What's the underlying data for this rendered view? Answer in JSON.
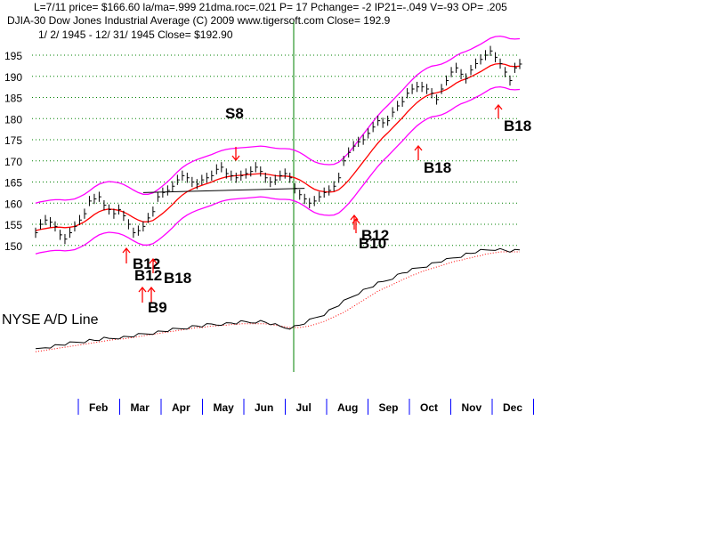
{
  "header": {
    "line1": "L=7/11  price= $166.60  la/ma=.999 21dma.roc=.021 P=  17 Pchange= -2 IP21=-.049 V=-93 OP= .205",
    "line2": "DJIA-30  Dow Jones Industrial Average          (C) 2009 www.tigersoft.com     Close=  192.9",
    "line3": "1/ 2/ 1945 -  12/ 31/ 1945   Close= $192.90"
  },
  "ad_label": "NYSE A/D Line",
  "colors": {
    "grid": "#008000",
    "band": "#ff00ff",
    "ma": "#ff0000",
    "price": "#000000",
    "divider": "#008000",
    "signal_arrow": "#ff0000",
    "ad_ma": "#ff0000",
    "month_tick": "#0000ff"
  },
  "chart_data": {
    "type": "line",
    "title": "DJIA-30 Dow Jones Industrial Average",
    "xlabel": "",
    "ylabel": "",
    "ylim": [
      148,
      196
    ],
    "y_ticks": [
      150,
      155,
      160,
      165,
      170,
      175,
      180,
      185,
      190,
      195
    ],
    "grid": "horizontal dotted",
    "months": [
      "Feb",
      "Mar",
      "Apr",
      "May",
      "Jun",
      "Jul",
      "Aug",
      "Sep",
      "Oct",
      "Nov",
      "Dec"
    ],
    "series": [
      {
        "values": [
          153.0,
          155.0,
          156.0,
          155.5,
          154.5,
          152.5,
          151.5,
          153.0,
          154.5,
          156.0,
          157.5,
          160.5,
          161.0,
          161.5,
          159.5,
          158.5,
          157.5,
          158.5,
          157.0,
          155.0,
          153.0,
          153.5,
          154.5,
          156.5,
          158.0,
          161.5,
          162.5,
          163.0,
          164.0,
          165.5,
          166.5,
          166.0,
          165.0,
          164.5,
          165.5,
          166.0,
          166.5,
          168.0,
          168.5,
          167.0,
          166.5,
          166.0,
          166.5,
          167.0,
          167.5,
          168.5,
          167.5,
          166.0,
          165.0,
          165.5,
          166.5,
          167.0,
          166.0,
          163.5,
          162.0,
          161.0,
          160.0,
          160.5,
          161.5,
          162.5,
          163.0,
          164.0,
          166.0,
          170.0,
          172.0,
          173.5,
          174.5,
          175.0,
          176.5,
          178.0,
          179.5,
          179.0,
          179.5,
          181.5,
          183.0,
          184.0,
          186.0,
          187.0,
          187.5,
          187.5,
          187.0,
          186.0,
          184.5,
          187.0,
          189.0,
          191.0,
          192.0,
          190.5,
          189.5,
          191.5,
          193.0,
          194.0,
          195.0,
          196.0,
          194.5,
          193.0,
          191.0,
          189.0,
          192.0,
          192.9
        ]
      },
      {
        "values": [
          153.5,
          153.8,
          154.0,
          154.2,
          154.3,
          154.3,
          154.2,
          154.3,
          154.5,
          155.0,
          155.6,
          156.4,
          157.3,
          158.0,
          158.4,
          158.6,
          158.5,
          158.3,
          157.9,
          157.3,
          156.6,
          156.0,
          155.6,
          155.6,
          155.9,
          156.7,
          157.6,
          158.6,
          159.7,
          160.9,
          161.9,
          162.7,
          163.3,
          163.8,
          164.2,
          164.6,
          165.0,
          165.5,
          165.9,
          166.2,
          166.4,
          166.5,
          166.6,
          166.7,
          166.8,
          166.9,
          167.0,
          166.9,
          166.7,
          166.5,
          166.4,
          166.4,
          166.3,
          166.0,
          165.5,
          164.8,
          164.0,
          163.3,
          162.9,
          162.7,
          162.6,
          162.7,
          163.2,
          164.2,
          165.4,
          166.8,
          168.3,
          169.8,
          171.3,
          172.8,
          174.2,
          175.5,
          176.6,
          177.8,
          179.0,
          180.2,
          181.5,
          182.7,
          183.8,
          184.7,
          185.4,
          185.9,
          186.1,
          186.4,
          186.9,
          187.6,
          188.4,
          189.0,
          189.4,
          189.9,
          190.5,
          191.1,
          191.8,
          192.5,
          192.9,
          193.0,
          192.8,
          192.4,
          192.3,
          192.4
        ]
      }
    ],
    "signals": [
      {
        "label": "S8",
        "index": 36
      },
      {
        "label": "B12",
        "index": 16
      },
      {
        "label": "B12",
        "index": 19
      },
      {
        "label": "B18",
        "index": 20
      },
      {
        "label": "B9",
        "index": 19
      },
      {
        "label": "B12",
        "index": 56
      },
      {
        "label": "B10",
        "index": 57
      },
      {
        "label": "B18",
        "index": 76
      },
      {
        "label": "B18",
        "index": 97
      }
    ],
    "ad_line": {
      "values": [
        10,
        12,
        14,
        15,
        16,
        17,
        18,
        19,
        20,
        21,
        22,
        23,
        23,
        24,
        25,
        25,
        26,
        27,
        27,
        28,
        29,
        30,
        31,
        32,
        33,
        34,
        35,
        36,
        37,
        38,
        39,
        40,
        41,
        42,
        42,
        43,
        44,
        44,
        45,
        45,
        46,
        46,
        47,
        47,
        47,
        48,
        48,
        47,
        45,
        43,
        41,
        40,
        40,
        41,
        43,
        46,
        49,
        52,
        55,
        58,
        62,
        66,
        70,
        74,
        78,
        82,
        86,
        89,
        92,
        95,
        98,
        100,
        103,
        106,
        109,
        112,
        114,
        116,
        118,
        120,
        122,
        124,
        126,
        128,
        129,
        131,
        133,
        135,
        137,
        138,
        140,
        141,
        142,
        143,
        144,
        143,
        142,
        141,
        141,
        142
      ],
      "ma": [
        8,
        9,
        10,
        11,
        12,
        13,
        14,
        15,
        16,
        17,
        18,
        19,
        20,
        21,
        22,
        23,
        24,
        25,
        25,
        26,
        27,
        28,
        29,
        30,
        31,
        32,
        33,
        34,
        35,
        36,
        37,
        38,
        39,
        40,
        40,
        41,
        42,
        42,
        43,
        43,
        44,
        44,
        45,
        45,
        45,
        45,
        45,
        45,
        44,
        43,
        42,
        41,
        40,
        40,
        40,
        41,
        42,
        44,
        46,
        48,
        51,
        54,
        57,
        60,
        64,
        68,
        72,
        76,
        80,
        84,
        88,
        91,
        94,
        97,
        100,
        103,
        106,
        109,
        111,
        114,
        116,
        118,
        120,
        122,
        124,
        126,
        128,
        129,
        131,
        132,
        134,
        135,
        137,
        138,
        139,
        140,
        140,
        140,
        140,
        140
      ]
    }
  }
}
